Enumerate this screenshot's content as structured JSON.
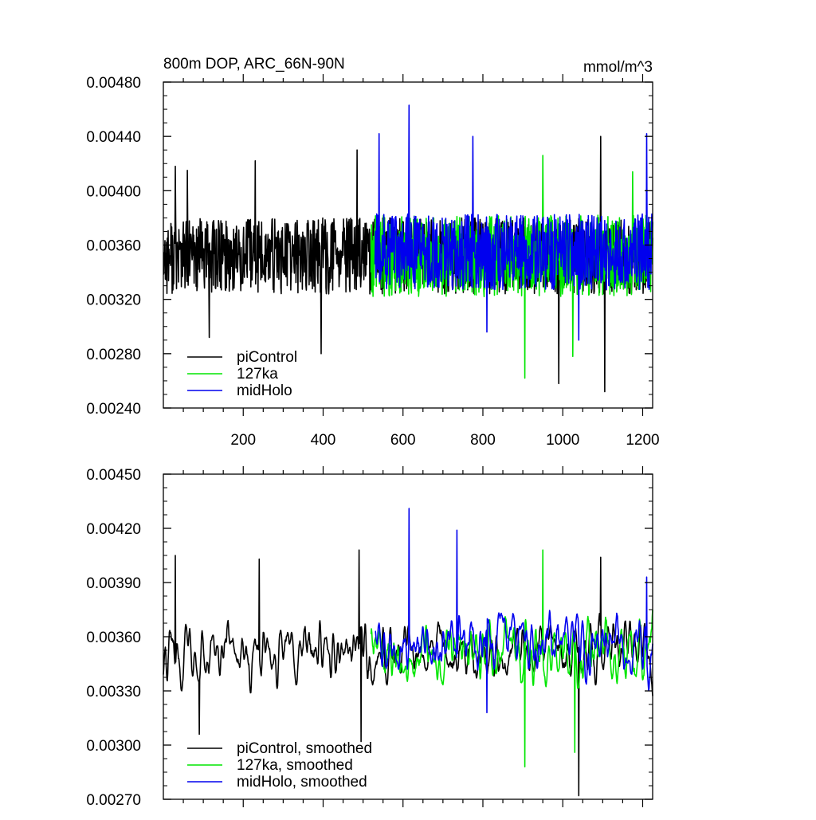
{
  "colors": {
    "piControl": "#000000",
    "127ka": "#00e600",
    "midHolo": "#0000ee"
  },
  "chart_data": [
    {
      "type": "line",
      "title": "800m DOP, ARC_66N-90N",
      "units": "mmol/m^3",
      "xlabel": "",
      "ylabel": "",
      "xlim": [
        0,
        1225
      ],
      "ylim": [
        0.0024,
        0.0048
      ],
      "yticks": [
        "0.00240",
        "0.00280",
        "0.00320",
        "0.00360",
        "0.00400",
        "0.00440",
        "0.00480"
      ],
      "xticks": [
        "200",
        "400",
        "600",
        "800",
        "1000",
        "1200"
      ],
      "legend": "bottom-left",
      "series": [
        {
          "name": "piControl",
          "color_key": "piControl",
          "x_start": 0,
          "x_end": 1225,
          "mean": 0.00352,
          "amplitude": 0.00028,
          "seed": 11,
          "peaks": [
            [
              30,
              0.00418
            ],
            [
              60,
              0.00415
            ],
            [
              230,
              0.00422
            ],
            [
              485,
              0.0043
            ],
            [
              1095,
              0.0044
            ]
          ],
          "troughs": [
            [
              115,
              0.00292
            ],
            [
              395,
              0.0028
            ],
            [
              990,
              0.00258
            ],
            [
              1105,
              0.00252
            ]
          ]
        },
        {
          "name": "127ka",
          "color_key": "127ka",
          "x_start": 520,
          "x_end": 1225,
          "mean": 0.00352,
          "amplitude": 0.0003,
          "seed": 23,
          "peaks": [
            [
              950,
              0.00426
            ],
            [
              1175,
              0.00414
            ]
          ],
          "troughs": [
            [
              905,
              0.00262
            ],
            [
              1025,
              0.00278
            ]
          ]
        },
        {
          "name": "midHolo",
          "color_key": "midHolo",
          "x_start": 530,
          "x_end": 1225,
          "mean": 0.00355,
          "amplitude": 0.00028,
          "seed": 37,
          "peaks": [
            [
              540,
              0.00442
            ],
            [
              615,
              0.00463
            ],
            [
              775,
              0.0044
            ],
            [
              1210,
              0.00442
            ]
          ],
          "troughs": [
            [
              810,
              0.00296
            ],
            [
              1040,
              0.0029
            ]
          ]
        }
      ]
    },
    {
      "type": "line",
      "title": "",
      "xlabel": "",
      "ylabel": "",
      "xlim": [
        0,
        1225
      ],
      "ylim": [
        0.0027,
        0.0045
      ],
      "yticks": [
        "0.00270",
        "0.00300",
        "0.00330",
        "0.00360",
        "0.00390",
        "0.00420",
        "0.00450"
      ],
      "xticks": [],
      "legend": "bottom-left",
      "series": [
        {
          "name": "piControl, smoothed",
          "color_key": "piControl",
          "x_start": 0,
          "x_end": 1225,
          "mean": 0.00352,
          "amplitude": 0.00017,
          "seed": 11,
          "peaks": [
            [
              30,
              0.00405
            ],
            [
              240,
              0.00403
            ],
            [
              490,
              0.00408
            ],
            [
              1095,
              0.00404
            ]
          ],
          "troughs": [
            [
              90,
              0.00306
            ],
            [
              495,
              0.00302
            ],
            [
              1040,
              0.00272
            ]
          ]
        },
        {
          "name": "127ka, smoothed",
          "color_key": "127ka",
          "x_start": 520,
          "x_end": 1225,
          "mean": 0.00352,
          "amplitude": 0.00018,
          "seed": 23,
          "peaks": [
            [
              950,
              0.00408
            ]
          ],
          "troughs": [
            [
              905,
              0.00288
            ],
            [
              1030,
              0.00296
            ]
          ]
        },
        {
          "name": "midHolo, smoothed",
          "color_key": "midHolo",
          "x_start": 530,
          "x_end": 1225,
          "mean": 0.00356,
          "amplitude": 0.00017,
          "seed": 37,
          "peaks": [
            [
              615,
              0.00431
            ],
            [
              735,
              0.00419
            ],
            [
              1210,
              0.00393
            ]
          ],
          "troughs": [
            [
              810,
              0.00318
            ]
          ]
        }
      ]
    }
  ]
}
